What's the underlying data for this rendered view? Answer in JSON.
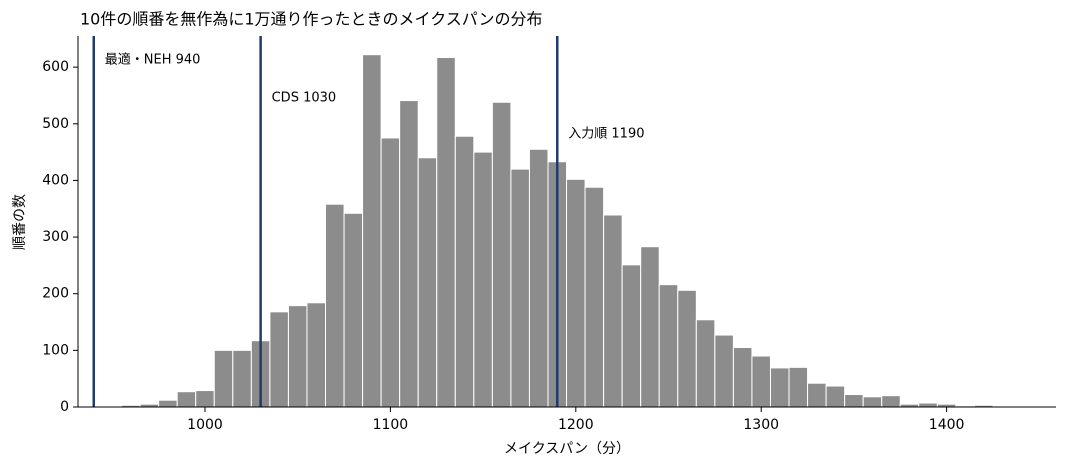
{
  "chart_data": {
    "type": "histogram",
    "title": "10件の順番を無作為に1万通り作ったときのメイクスパンの分布",
    "xlabel": "メイクスパン（分）",
    "ylabel": "順番の数",
    "bins": [
      955,
      965,
      975,
      985,
      995,
      1005,
      1015,
      1025,
      1035,
      1045,
      1055,
      1065,
      1075,
      1085,
      1095,
      1105,
      1115,
      1125,
      1135,
      1145,
      1155,
      1165,
      1175,
      1185,
      1195,
      1205,
      1215,
      1225,
      1235,
      1245,
      1255,
      1265,
      1275,
      1285,
      1295,
      1305,
      1315,
      1325,
      1335,
      1345,
      1355,
      1365,
      1375,
      1385,
      1395,
      1405,
      1415,
      1425
    ],
    "counts": [
      3,
      5,
      12,
      27,
      29,
      100,
      100,
      117,
      168,
      179,
      184,
      358,
      342,
      622,
      475,
      541,
      440,
      617,
      478,
      450,
      538,
      420,
      455,
      433,
      402,
      388,
      339,
      251,
      283,
      216,
      206,
      154,
      127,
      105,
      90,
      69,
      70,
      42,
      37,
      22,
      18,
      20,
      5,
      7,
      5,
      2,
      3
    ],
    "color": "#8c8c8c",
    "vlines": [
      {
        "x": 940,
        "label": "最適・NEH 940"
      },
      {
        "x": 1030,
        "label": "CDS 1030"
      },
      {
        "x": 1190,
        "label": "入力順 1190"
      }
    ],
    "vline_color": "#1f3a6e",
    "xlim": [
      931.5,
      1459
    ],
    "ylim": [
      0,
      655
    ],
    "xticks": [
      1000,
      1100,
      1200,
      1300,
      1400
    ],
    "yticks": [
      0,
      100,
      200,
      300,
      400,
      500,
      600
    ]
  }
}
